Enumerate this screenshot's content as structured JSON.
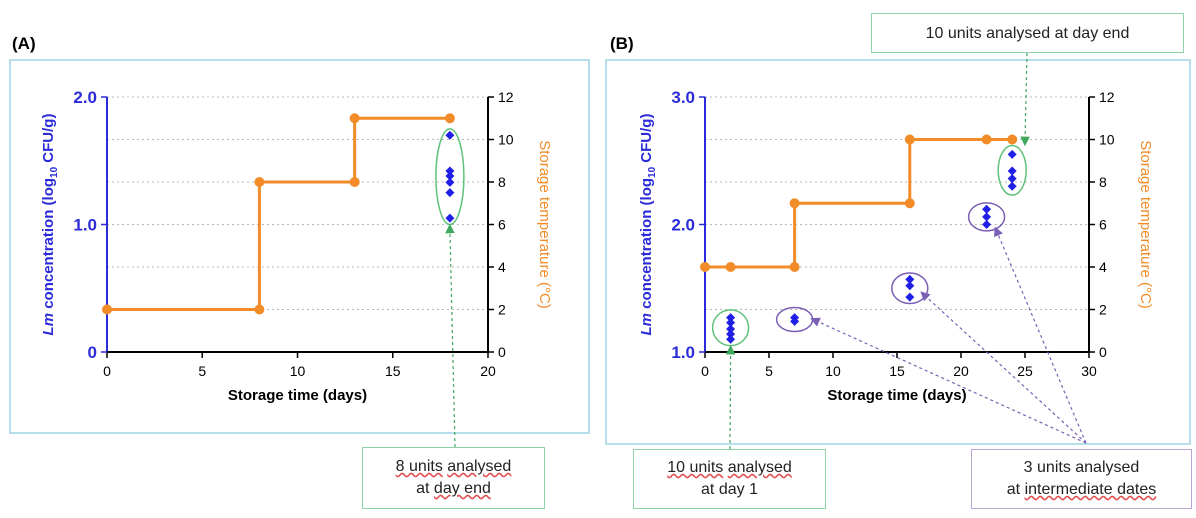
{
  "chart_data": [
    {
      "panel_label": "(A)",
      "type": "line+scatter",
      "xlabel": "Storage time (days)",
      "ylabel_left_italic": "Lm",
      "ylabel_left_rest": " concentration (log",
      "ylabel_left_sub": "10",
      "ylabel_left_tail": " CFU/g)",
      "ylabel_right": "Storage temperature (°C)",
      "xlim": [
        0,
        20
      ],
      "xticks": [
        "0",
        "5",
        "10",
        "15",
        "20"
      ],
      "ylim_left": [
        0,
        2.0
      ],
      "yticks_left": [
        "0",
        "1.0",
        "2.0"
      ],
      "ylim_right": [
        0,
        12
      ],
      "yticks_right": [
        "0",
        "2",
        "4",
        "6",
        "8",
        "10",
        "12"
      ],
      "temperature_series": {
        "color": "#f28c28",
        "points": [
          [
            0,
            2
          ],
          [
            8,
            2
          ],
          [
            8,
            8
          ],
          [
            13,
            8
          ],
          [
            13,
            11
          ],
          [
            18,
            11
          ]
        ],
        "markers": [
          [
            0,
            2
          ],
          [
            8,
            2
          ],
          [
            8,
            8
          ],
          [
            13,
            8
          ],
          [
            13,
            11
          ],
          [
            18,
            11
          ]
        ]
      },
      "concentration_series": {
        "color": "#1f1fe6",
        "points": [
          [
            18,
            1.7
          ],
          [
            18,
            1.42
          ],
          [
            18,
            1.38
          ],
          [
            18,
            1.33
          ],
          [
            18,
            1.25
          ],
          [
            18,
            1.05
          ]
        ]
      },
      "groups": [
        {
          "x": 18,
          "ymin": 1.0,
          "ymax": 1.75,
          "color": "#5ec27a"
        }
      ]
    },
    {
      "panel_label": "(B)",
      "type": "line+scatter",
      "xlabel": "Storage time (days)",
      "ylabel_left_italic": "Lm",
      "ylabel_left_rest": " concentration (log",
      "ylabel_left_sub": "10",
      "ylabel_left_tail": " CFU/g)",
      "ylabel_right": "Storage temperature (°C)",
      "xlim": [
        0,
        30
      ],
      "xticks": [
        "0",
        "5",
        "10",
        "15",
        "20",
        "25",
        "30"
      ],
      "ylim_left": [
        1.0,
        3.0
      ],
      "yticks_left": [
        "1.0",
        "2.0",
        "3.0"
      ],
      "ylim_right": [
        0,
        12
      ],
      "yticks_right": [
        "0",
        "2",
        "4",
        "6",
        "8",
        "10",
        "12"
      ],
      "temperature_series": {
        "color": "#f28c28",
        "points": [
          [
            0,
            4
          ],
          [
            2,
            4
          ],
          [
            7,
            4
          ],
          [
            7,
            7
          ],
          [
            16,
            7
          ],
          [
            16,
            10
          ],
          [
            22,
            10
          ],
          [
            24,
            10
          ]
        ],
        "markers": [
          [
            0,
            4
          ],
          [
            2,
            4
          ],
          [
            7,
            4
          ],
          [
            7,
            7
          ],
          [
            16,
            7
          ],
          [
            16,
            10
          ],
          [
            22,
            10
          ],
          [
            24,
            10
          ]
        ]
      },
      "concentration_series": {
        "color": "#1f1fe6",
        "points": [
          [
            2,
            1.27
          ],
          [
            2,
            1.23
          ],
          [
            2,
            1.18
          ],
          [
            2,
            1.14
          ],
          [
            2,
            1.1
          ],
          [
            7,
            1.27
          ],
          [
            7,
            1.24
          ],
          [
            16,
            1.57
          ],
          [
            16,
            1.52
          ],
          [
            16,
            1.43
          ],
          [
            22,
            2.12
          ],
          [
            22,
            2.06
          ],
          [
            22,
            2.0
          ],
          [
            24,
            2.55
          ],
          [
            24,
            2.42
          ],
          [
            24,
            2.36
          ],
          [
            24,
            2.3
          ]
        ]
      },
      "groups": [
        {
          "x": 2,
          "ymin": 1.05,
          "ymax": 1.33,
          "color": "#5ec27a"
        },
        {
          "x": 7,
          "ymin": 1.2,
          "ymax": 1.31,
          "color": "#7a5fb5"
        },
        {
          "x": 16,
          "ymin": 1.38,
          "ymax": 1.62,
          "color": "#7a5fb5"
        },
        {
          "x": 22,
          "ymin": 1.95,
          "ymax": 2.17,
          "color": "#7a5fb5"
        },
        {
          "x": 24,
          "ymin": 2.23,
          "ymax": 2.62,
          "color": "#5ec27a"
        }
      ]
    }
  ],
  "callouts": {
    "a_day_end": {
      "line1_u": "8 units",
      "line1_rest": " ",
      "line1_u2": "analysed",
      "line2": "at ",
      "line2_u": "day end"
    },
    "b_day_end": {
      "text": "10 units analysed at day end"
    },
    "b_day_1": {
      "line1_u": "10 units",
      "line1_rest": " ",
      "line1_u2": "analysed",
      "line2": "at day 1"
    },
    "b_intermediate": {
      "line1": "3 units analysed",
      "line2": "at ",
      "line2_u": "intermediate dates"
    }
  },
  "colors": {
    "frame": "#9fd3e6",
    "left_axis": "#2b2bd9",
    "right_axis": "#f28c28",
    "green_ellipse": "#5ec27a",
    "purple_ellipse": "#7a5fb5"
  }
}
